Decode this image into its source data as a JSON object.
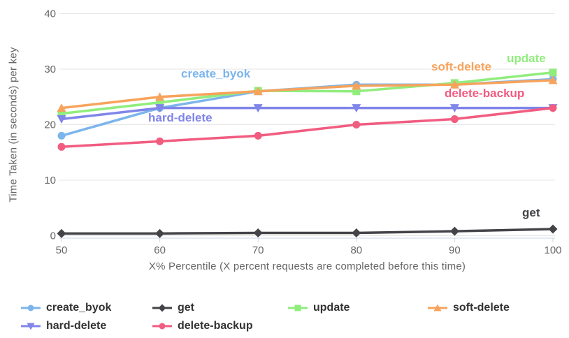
{
  "chart_data": {
    "type": "line",
    "title": "",
    "xlabel": "X% Percentile (X percent requests are completed before this time)",
    "ylabel": "Time Taken (in seconds) per key",
    "x": [
      50,
      60,
      70,
      80,
      90,
      100
    ],
    "xlim": [
      50,
      100
    ],
    "ylim": [
      0,
      40
    ],
    "yticks": [
      0,
      10,
      20,
      30,
      40
    ],
    "grid": "horizontal",
    "legend_position": "bottom",
    "axis_color": "#ccd6eb",
    "grid_color": "#e6e6e6",
    "tick_label_color": "#666666",
    "series": [
      {
        "name": "create_byok",
        "color": "#7cb5ec",
        "marker": "circle",
        "values": [
          18,
          23,
          26,
          27.2,
          27.2,
          28.2
        ]
      },
      {
        "name": "get",
        "color": "#434348",
        "marker": "diamond",
        "values": [
          0.4,
          0.4,
          0.5,
          0.5,
          0.8,
          1.2
        ]
      },
      {
        "name": "update",
        "color": "#90ed7d",
        "marker": "square",
        "values": [
          22,
          24,
          26.1,
          26,
          27.5,
          29.4
        ]
      },
      {
        "name": "soft-delete",
        "color": "#f7a35c",
        "marker": "triangle",
        "values": [
          23,
          25,
          26,
          27,
          27.2,
          28
        ]
      },
      {
        "name": "hard-delete",
        "color": "#8085e9",
        "marker": "triangle-down",
        "values": [
          21,
          23,
          23,
          23,
          23,
          23
        ]
      },
      {
        "name": "delete-backup",
        "color": "#f15c80",
        "marker": "circle",
        "values": [
          16,
          17,
          18,
          20,
          21,
          23
        ]
      }
    ]
  }
}
